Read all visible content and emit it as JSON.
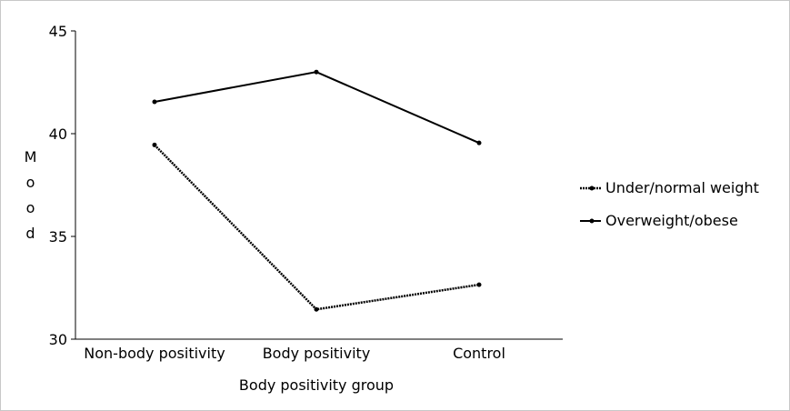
{
  "chart_data": {
    "type": "line",
    "title": "",
    "xlabel": "Body positivity group",
    "ylabel": "Mood",
    "categories": [
      "Non-body positivity",
      "Body positivity",
      "Control"
    ],
    "ylim": [
      30,
      45
    ],
    "yticks": [
      30,
      35,
      40,
      45
    ],
    "grid": false,
    "legend_position": "right",
    "series": [
      {
        "name": "Under/normal weight",
        "values": [
          39.45,
          31.45,
          32.65
        ],
        "style": "dotted",
        "color": "#000000"
      },
      {
        "name": "Overweight/obese",
        "values": [
          41.55,
          43.0,
          39.55
        ],
        "style": "solid",
        "color": "#000000"
      }
    ]
  }
}
